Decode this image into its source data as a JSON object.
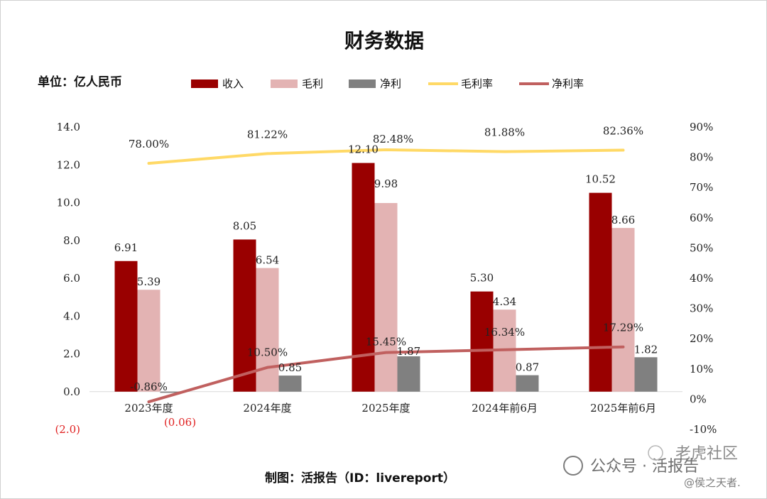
{
  "chart_data": {
    "type": "bar",
    "title": "财务数据",
    "unit_label": "单位：亿人民币",
    "categories": [
      "2023年度",
      "2024年度",
      "2025年度",
      "2024年前6月",
      "2025年前6月"
    ],
    "bar_series": [
      {
        "name": "收入",
        "color": "#990000",
        "values": [
          6.91,
          8.05,
          12.1,
          5.3,
          10.52
        ],
        "labels": [
          "6.91",
          "8.05",
          "12.10",
          "5.30",
          "10.52"
        ]
      },
      {
        "name": "毛利",
        "color": "#e3b3b3",
        "values": [
          5.39,
          6.54,
          9.98,
          4.34,
          8.66
        ],
        "labels": [
          "5.39",
          "6.54",
          "9.98",
          "4.34",
          "8.66"
        ]
      },
      {
        "name": "净利",
        "color": "#808080",
        "values": [
          -0.06,
          0.85,
          1.87,
          0.87,
          1.82
        ],
        "labels": [
          "(0.06)",
          "0.85",
          "1.87",
          "0.87",
          "1.82"
        ]
      }
    ],
    "line_series": [
      {
        "name": "毛利率",
        "color": "#ffd966",
        "values": [
          78.0,
          81.22,
          82.48,
          81.88,
          82.36
        ],
        "labels": [
          "78.00%",
          "81.22%",
          "82.48%",
          "81.88%",
          "82.36%"
        ]
      },
      {
        "name": "净利率",
        "color": "#c0605f",
        "values": [
          -0.86,
          10.5,
          15.45,
          16.34,
          17.29
        ],
        "labels": [
          "-0.86%",
          "10.50%",
          "15.45%",
          "16.34%",
          "17.29%"
        ]
      }
    ],
    "y_left": {
      "min": -2.0,
      "max": 14.0,
      "step": 2.0,
      "tick_labels": [
        "(2.0)",
        "0.0",
        "2.0",
        "4.0",
        "6.0",
        "8.0",
        "10.0",
        "12.0",
        "14.0"
      ]
    },
    "y_right": {
      "min": -10,
      "max": 90,
      "step": 10,
      "tick_labels": [
        "-10%",
        "0%",
        "10%",
        "20%",
        "30%",
        "40%",
        "50%",
        "60%",
        "70%",
        "80%",
        "90%"
      ]
    },
    "legend_position": "top",
    "grid": false
  },
  "footer": {
    "caption": "制图：活报告（ID：livereport）"
  },
  "watermark": {
    "line1": "公众号 · 活报告",
    "line2": "老虎社区",
    "line3": "@侯之天者."
  }
}
